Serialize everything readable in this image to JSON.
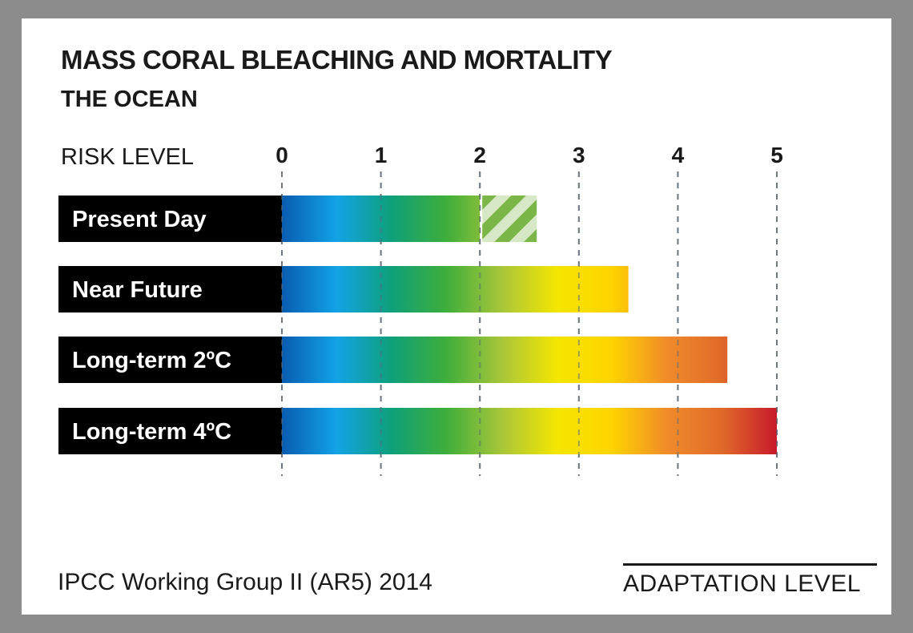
{
  "chart_data": {
    "type": "bar",
    "orientation": "horizontal",
    "title": "MASS CORAL BLEACHING AND MORTALITY",
    "subtitle": "THE OCEAN",
    "xlabel": "RISK LEVEL",
    "xlim": [
      0,
      5
    ],
    "ticks": [
      "0",
      "1",
      "2",
      "3",
      "4",
      "5"
    ],
    "grid": true,
    "categories": [
      "Present Day",
      "Near Future",
      "Long-term 2ºC",
      "Long-term 4ºC"
    ],
    "values": [
      2.0,
      3.5,
      4.5,
      5.0
    ],
    "hatched_extension": [
      0.55,
      0,
      0,
      0
    ],
    "colors": {
      "label_box": "#000000",
      "gradient": [
        "#0a5cb0",
        "#12a3e6",
        "#0ea07a",
        "#3fae3a",
        "#a8c63a",
        "#f5e600",
        "#ffd400",
        "#f08b2a",
        "#e06a2a",
        "#c8192a"
      ],
      "hatch": "#7ab648"
    }
  },
  "footer": {
    "source": "IPCC Working Group II (AR5) 2014",
    "adaptation_label": "ADAPTATION  LEVEL"
  }
}
